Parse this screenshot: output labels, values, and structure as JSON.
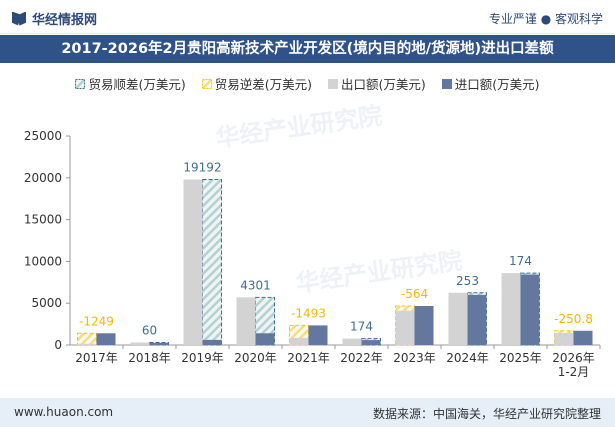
{
  "header": {
    "logo": "华经情报网",
    "slogan": "专业严谨 ● 客观科学"
  },
  "footer": {
    "website": "www.huaon.com",
    "source": "数据来源：中国海关，华经产业研究院整理"
  },
  "watermark": "华经产业研究院",
  "colors": {
    "export": "#d3d3d3",
    "import": "#63779f",
    "surplus": "#3f6f8f",
    "deficit": "#f5c518",
    "title_bg": "#2f5388"
  },
  "chart_data": {
    "type": "bar",
    "title": "2017-2026年2月贵阳高新技术产业开发区(境内目的地/货源地)进出口差额",
    "categories": [
      "2017年",
      "2018年",
      "2019年",
      "2020年",
      "2021年",
      "2022年",
      "2023年",
      "2024年",
      "2025年",
      "2026年\n1-2月"
    ],
    "series": [
      {
        "name": "贸易顺差(万美元)",
        "values": [
          null,
          60,
          19192,
          4301,
          null,
          174,
          null,
          253,
          174,
          null
        ]
      },
      {
        "name": "贸易逆差(万美元)",
        "values": [
          -1249,
          null,
          null,
          null,
          -1493,
          null,
          -564,
          null,
          null,
          -250.8
        ]
      },
      {
        "name": "出口额(万美元)",
        "values": [
          150,
          300,
          19800,
          5700,
          850,
          760,
          4100,
          6250,
          8600,
          1450
        ]
      },
      {
        "name": "进口额(万美元)",
        "values": [
          1399,
          240,
          608,
          1399,
          2343,
          586,
          4664,
          5997,
          8426,
          1700.8
        ]
      }
    ],
    "data_labels": [
      "-1249",
      "60",
      "19192",
      "4301",
      "-1493",
      "174",
      "-564",
      "253",
      "174",
      "-250.8"
    ],
    "ylim": [
      0,
      25000
    ],
    "yticks": [
      "0",
      "5000",
      "10000",
      "15000",
      "20000",
      "25000"
    ],
    "grid": false,
    "legend": "top"
  }
}
